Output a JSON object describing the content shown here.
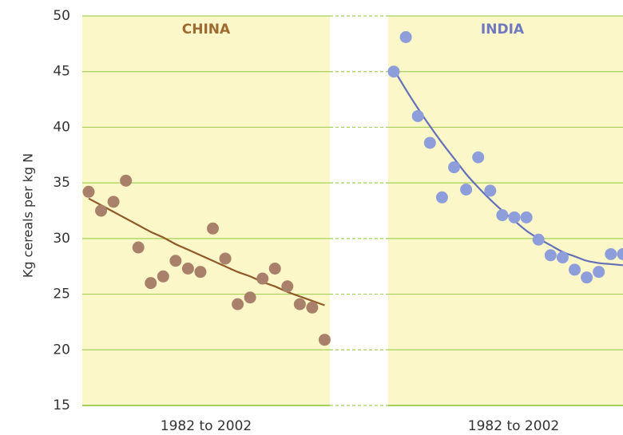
{
  "chart_data": {
    "type": "scatter",
    "y_label": "Kg cereals per kg N",
    "ylim": [
      15,
      50
    ],
    "yticks": [
      15,
      20,
      25,
      30,
      35,
      40,
      45,
      50
    ],
    "grid": true,
    "grid_color": "#a5cf58",
    "panel_color": "#fcf7c8",
    "panels": [
      {
        "title": "CHINA",
        "title_color": "#9c6a32",
        "x_label": "1982 to 2002",
        "point_color": "#a9806a",
        "line_color": "#8f5a2a",
        "categories": [
          null,
          null,
          null,
          null,
          null,
          null,
          null,
          null,
          null,
          null,
          null,
          null,
          null,
          null,
          null,
          null,
          null,
          null,
          null,
          null
        ],
        "values": [
          34.2,
          32.5,
          33.3,
          35.2,
          29.2,
          26.0,
          26.6,
          28.0,
          27.3,
          27.0,
          30.9,
          28.2,
          24.1,
          24.7,
          26.4,
          27.3,
          25.7,
          24.1,
          23.8,
          20.9
        ],
        "trend": [
          33.6,
          33.0,
          32.4,
          31.8,
          31.2,
          30.6,
          30.1,
          29.5,
          29.0,
          28.5,
          28.0,
          27.5,
          27.0,
          26.6,
          26.1,
          25.7,
          25.2,
          24.8,
          24.4,
          24.0
        ]
      },
      {
        "title": "INDIA",
        "title_color": "#6f78c0",
        "x_label": "1982 to 2002",
        "point_color": "#8e9edb",
        "line_color": "#6470b8",
        "categories": [
          null,
          null,
          null,
          null,
          null,
          null,
          null,
          null,
          null,
          null,
          null,
          null,
          null,
          null,
          null,
          null,
          null,
          null,
          null,
          null
        ],
        "values": [
          45.0,
          48.1,
          41.0,
          38.6,
          33.7,
          36.4,
          34.4,
          37.3,
          34.3,
          32.1,
          31.9,
          31.9,
          29.9,
          28.5,
          28.3,
          27.2,
          26.5,
          27.0,
          28.6,
          28.6
        ],
        "trend": [
          45.2,
          43.4,
          41.7,
          40.1,
          38.6,
          37.2,
          35.8,
          34.6,
          33.5,
          32.5,
          31.6,
          30.7,
          30.0,
          29.4,
          28.8,
          28.4,
          28.0,
          27.8,
          27.7,
          27.6
        ]
      }
    ]
  }
}
